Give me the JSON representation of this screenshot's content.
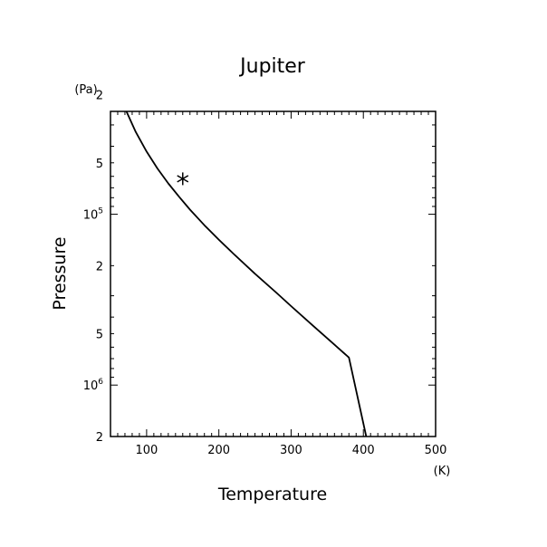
{
  "chart_data": {
    "type": "line",
    "title": "Jupiter",
    "xlabel": "Temperature",
    "ylabel": "Pressure",
    "x_unit": "(K)",
    "y_unit": "(Pa)",
    "xlim": [
      50,
      500
    ],
    "ylim": [
      2000000,
      25000
    ],
    "y_scale": "log",
    "y_inverted": true,
    "x_ticks": [
      {
        "value": 100,
        "label": "100"
      },
      {
        "value": 200,
        "label": "200"
      },
      {
        "value": 300,
        "label": "300"
      },
      {
        "value": 400,
        "label": "400"
      },
      {
        "value": 500,
        "label": "500"
      }
    ],
    "y_ticks": [
      {
        "value": 20000,
        "label": "2",
        "sup": ""
      },
      {
        "value": 50000,
        "label": "5",
        "sup": ""
      },
      {
        "value": 100000,
        "label": "10",
        "sup": "5"
      },
      {
        "value": 200000,
        "label": "2",
        "sup": ""
      },
      {
        "value": 500000,
        "label": "5",
        "sup": ""
      },
      {
        "value": 1000000,
        "label": "10",
        "sup": "6"
      },
      {
        "value": 2000000,
        "label": "2",
        "sup": ""
      }
    ],
    "grid": false,
    "series": [
      {
        "style": "line",
        "x": [
          72,
          85,
          100,
          115,
          130,
          145,
          160,
          180,
          200,
          220,
          250,
          280,
          300,
          330,
          360,
          380,
          404
        ],
        "y": [
          25000,
          33000,
          43000,
          54000,
          66000,
          79000,
          94000,
          116000,
          141000,
          170000,
          223000,
          289000,
          345000,
          448000,
          580000,
          690000,
          2000000
        ]
      },
      {
        "style": "marker",
        "marker": "asterisk",
        "x": [
          150
        ],
        "y": [
          62000
        ]
      }
    ]
  }
}
